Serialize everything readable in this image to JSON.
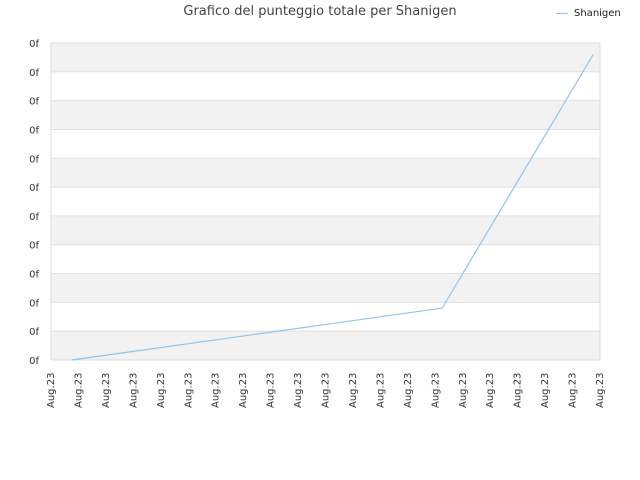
{
  "chart_data": {
    "type": "line",
    "title": "Grafico del punteggio totale per Shanigen",
    "xlabel": "",
    "ylabel": "",
    "x_tick_labels": [
      "Aug.23",
      "Aug.23",
      "Aug.23",
      "Aug.23",
      "Aug.23",
      "Aug.23",
      "Aug.23",
      "Aug.23",
      "Aug.23",
      "Aug.23",
      "Aug.23",
      "Aug.23",
      "Aug.23",
      "Aug.23",
      "Aug.23",
      "Aug.23",
      "Aug.23",
      "Aug.23",
      "Aug.23",
      "Aug.23",
      "Aug.23"
    ],
    "y_tick_labels": [
      "0f",
      "0f",
      "0f",
      "0f",
      "0f",
      "0f",
      "0f",
      "0f",
      "0f",
      "0f",
      "0f",
      "0f"
    ],
    "ylim": [
      0,
      11
    ],
    "grid": true,
    "legend": {
      "position": "top-right"
    },
    "series": [
      {
        "name": "Shanigen",
        "color": "#90c4f0",
        "x": [
          0.75,
          14.25,
          19.75
        ],
        "y": [
          0,
          1.8,
          10.6
        ]
      }
    ]
  }
}
